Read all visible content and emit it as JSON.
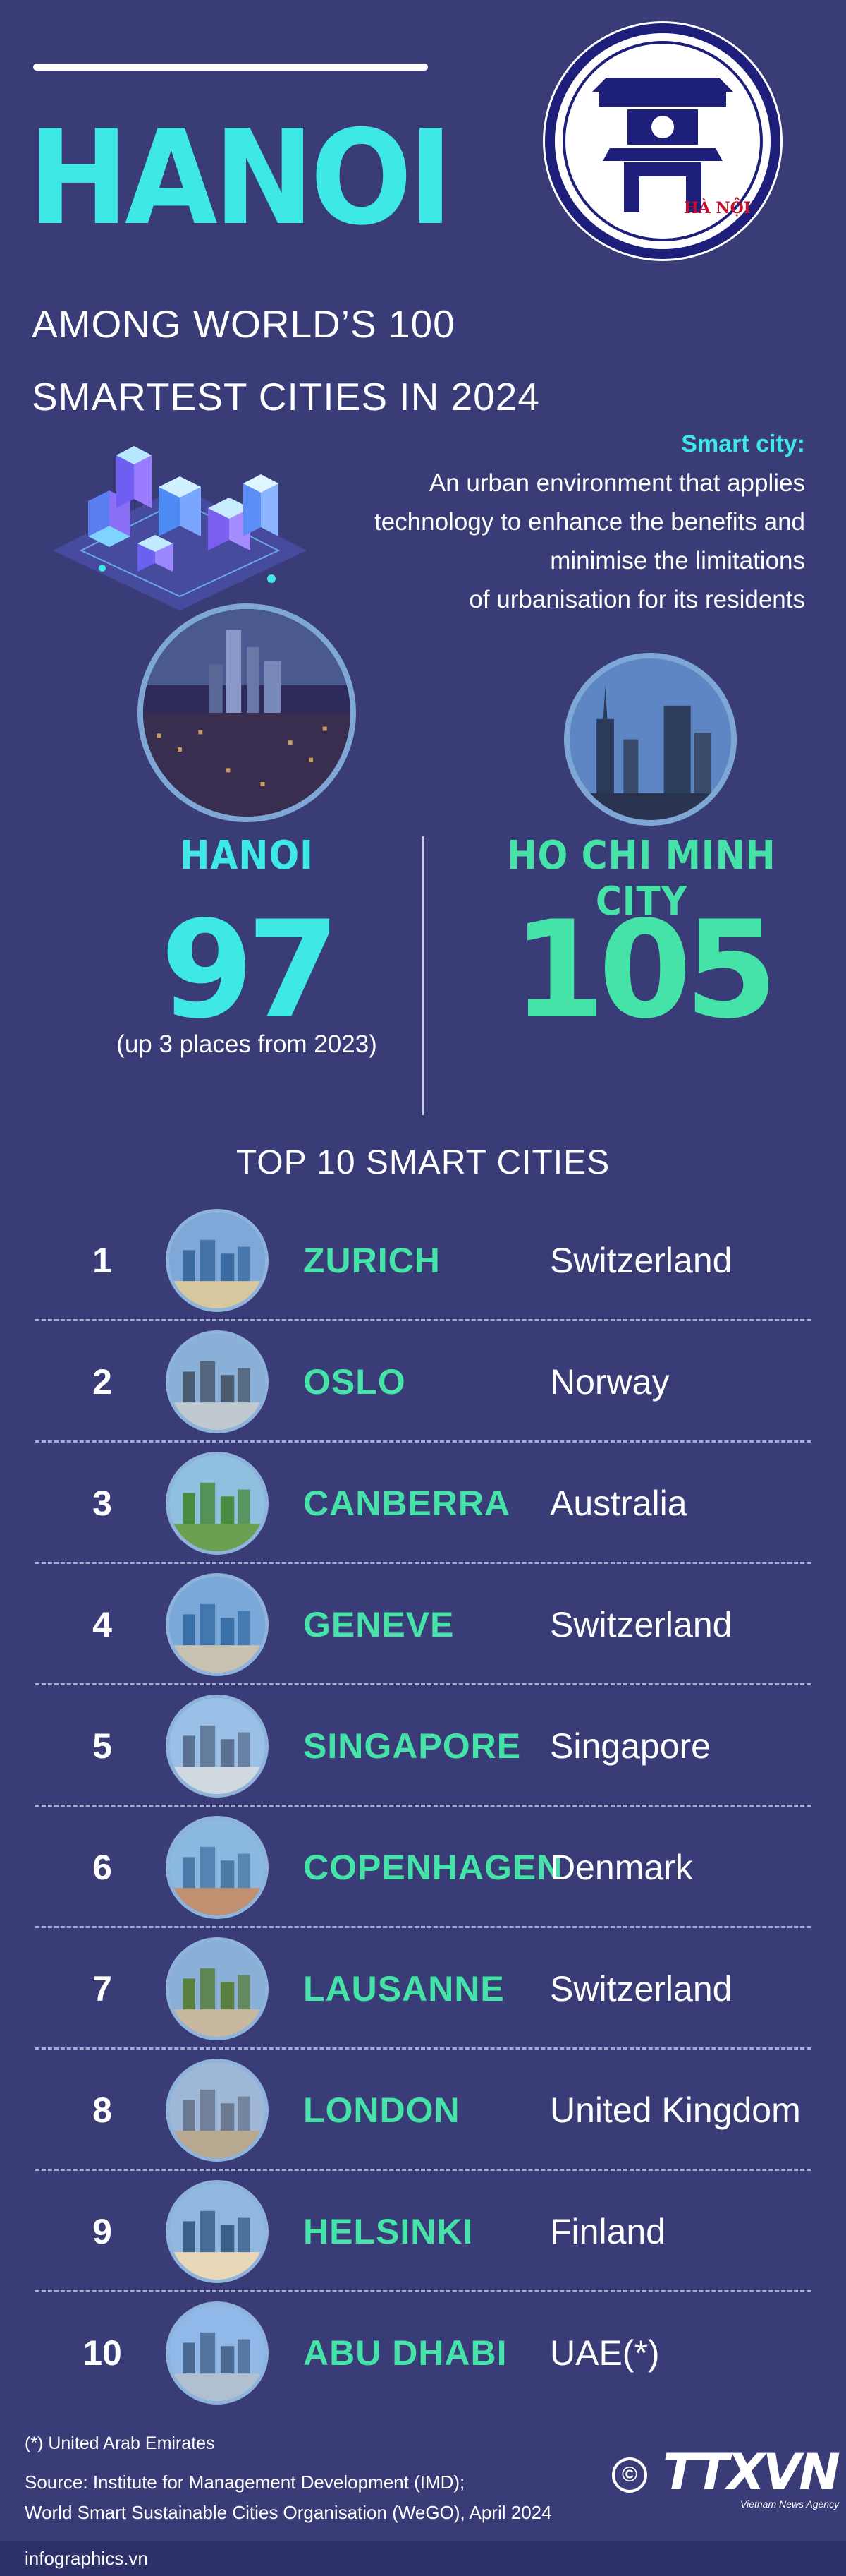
{
  "header": {
    "title": "HANOI",
    "subtitle_line1": "AMONG WORLD’S 100",
    "subtitle_line2": "SMARTEST CITIES IN 2024",
    "emblem_text": "HÀ NỘI"
  },
  "definition": {
    "heading": "Smart city:",
    "lines": [
      "An urban environment that applies",
      "technology to enhance the benefits and",
      "minimise the limitations",
      "of urbanisation for its residents"
    ]
  },
  "rankings": {
    "hanoi": {
      "name": "HANOI",
      "rank": "97",
      "note": "(up 3 places from 2023)"
    },
    "hcmc": {
      "name": "HO CHI MINH CITY",
      "rank": "105"
    }
  },
  "top10": {
    "title": "TOP 10 SMART CITIES",
    "items": [
      {
        "num": "1",
        "city": "ZURICH",
        "country": "Switzerland"
      },
      {
        "num": "2",
        "city": "OSLO",
        "country": "Norway"
      },
      {
        "num": "3",
        "city": "CANBERRA",
        "country": "Australia"
      },
      {
        "num": "4",
        "city": "GENEVE",
        "country": "Switzerland"
      },
      {
        "num": "5",
        "city": "SINGAPORE",
        "country": "Singapore"
      },
      {
        "num": "6",
        "city": "COPENHAGEN",
        "country": "Denmark"
      },
      {
        "num": "7",
        "city": "LAUSANNE",
        "country": "Switzerland"
      },
      {
        "num": "8",
        "city": "LONDON",
        "country": "United Kingdom"
      },
      {
        "num": "9",
        "city": "HELSINKI",
        "country": "Finland"
      },
      {
        "num": "10",
        "city": "ABU DHABI",
        "country": "UAE(*)"
      }
    ]
  },
  "footer": {
    "footnote": "(*) United Arab Emirates",
    "source_line1": "Source: Institute for Management Development (IMD);",
    "source_line2": "World Smart Sustainable Cities Organisation (WeGO), April 2024",
    "copyright": "©",
    "agency": "TTXVN",
    "agency_sub": "Vietnam News Agency",
    "site": "infographics.vn"
  },
  "colors": {
    "background": "#3a3c78",
    "accent_cyan": "#3ee8e4",
    "accent_green": "#46e3a8"
  },
  "icons": {
    "emblem": "hanoi-emblem-icon",
    "copyright": "copyright-icon",
    "illustration": "isometric-smart-city-illustration"
  }
}
